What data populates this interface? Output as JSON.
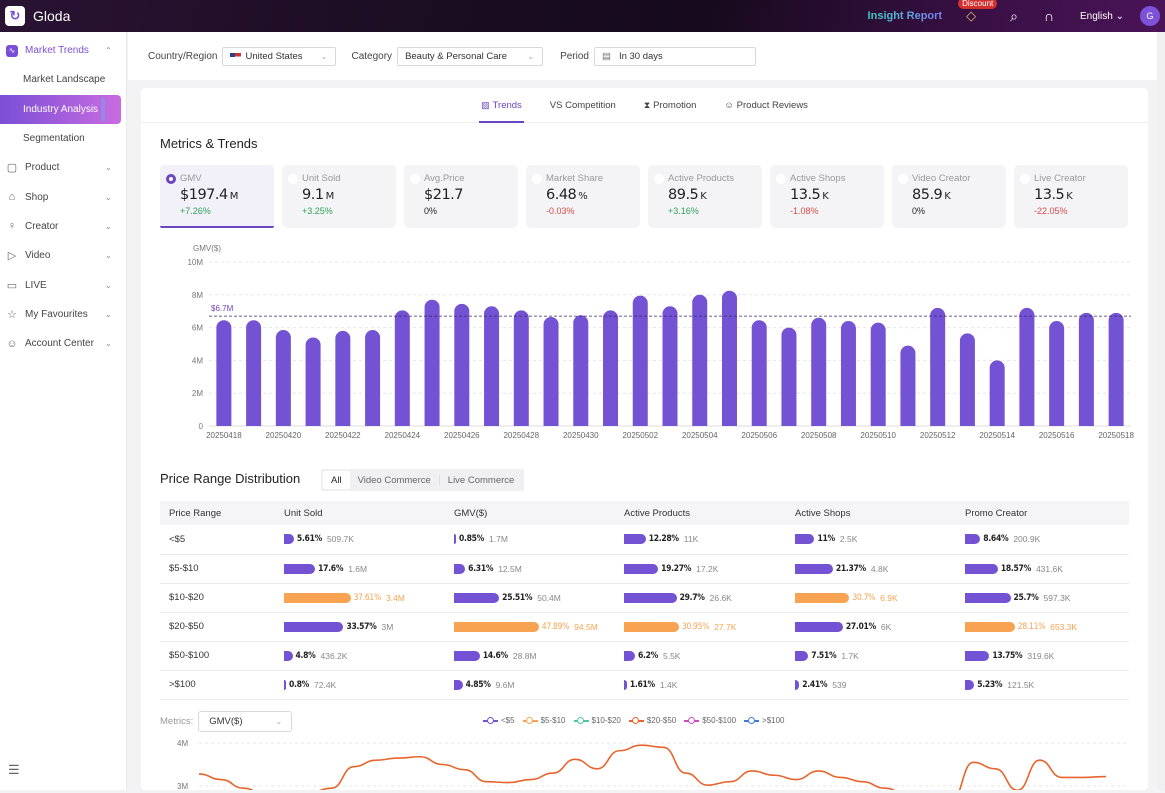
{
  "app": {
    "name": "Gloda",
    "logo_icon": "gloda-logo-icon"
  },
  "topbar": {
    "insight_report": "Insight Report",
    "discount_badge": "Discount",
    "language": "English",
    "avatar_initial": "G"
  },
  "sidebar": {
    "items": [
      {
        "label": "Market Trends",
        "icon": "chart-icon",
        "expanded": true,
        "children": [
          {
            "label": "Market Landscape",
            "active": false
          },
          {
            "label": "Industry Analysis",
            "active": true
          },
          {
            "label": "Segmentation",
            "active": false
          }
        ]
      },
      {
        "label": "Product",
        "icon": "bag-icon"
      },
      {
        "label": "Shop",
        "icon": "shop-icon"
      },
      {
        "label": "Creator",
        "icon": "user-icon"
      },
      {
        "label": "Video",
        "icon": "play-icon"
      },
      {
        "label": "LIVE",
        "icon": "live-icon"
      },
      {
        "label": "My Favourites",
        "icon": "star-icon"
      },
      {
        "label": "Account Center",
        "icon": "smile-icon"
      }
    ]
  },
  "filters": {
    "country_label": "Country/Region",
    "country_value": "United States",
    "category_label": "Category",
    "category_value": "Beauty & Personal Care",
    "period_label": "Period",
    "period_value": "In 30 days"
  },
  "tabs": [
    {
      "label": "Trends",
      "icon": "trend-icon",
      "active": true
    },
    {
      "label": "VS Competition",
      "icon": "",
      "active": false
    },
    {
      "label": "Promotion",
      "icon": "promotion-icon",
      "active": false
    },
    {
      "label": "Product Reviews",
      "icon": "review-icon",
      "active": false
    }
  ],
  "metrics_section": {
    "title": "Metrics & Trends",
    "cards": [
      {
        "label": "GMV",
        "value": "$197.4",
        "unit": "M",
        "change": "+7.26%",
        "trend": "pos",
        "selected": true
      },
      {
        "label": "Unit Sold",
        "value": "9.1",
        "unit": "M",
        "change": "+3.25%",
        "trend": "pos",
        "selected": false
      },
      {
        "label": "Avg.Price",
        "value": "$21.7",
        "unit": "",
        "change": "0%",
        "trend": "zero",
        "selected": false
      },
      {
        "label": "Market Share",
        "value": "6.48",
        "unit": "%",
        "change": "-0.03%",
        "trend": "neg",
        "selected": false
      },
      {
        "label": "Active Products",
        "value": "89.5",
        "unit": "K",
        "change": "+3.16%",
        "trend": "pos",
        "selected": false
      },
      {
        "label": "Active Shops",
        "value": "13.5",
        "unit": "K",
        "change": "-1.08%",
        "trend": "neg",
        "selected": false
      },
      {
        "label": "Video Creator",
        "value": "85.9",
        "unit": "K",
        "change": "0%",
        "trend": "zero",
        "selected": false
      },
      {
        "label": "Live Creator",
        "value": "13.5",
        "unit": "K",
        "change": "-22.05%",
        "trend": "neg",
        "selected": false
      }
    ]
  },
  "chart_data": {
    "type": "bar",
    "title": "",
    "ylabel": "GMV($)",
    "xlabel": "",
    "ylim": [
      0,
      10000000
    ],
    "yticks": [
      "0",
      "2M",
      "4M",
      "6M",
      "8M",
      "10M"
    ],
    "ytick_values": [
      0,
      2000000,
      4000000,
      6000000,
      8000000,
      10000000
    ],
    "grid": true,
    "bar_color": "#7352d4",
    "average_line": {
      "value": 6700000,
      "label": "$6.7M"
    },
    "categories": [
      "20250418",
      "20250419",
      "20250420",
      "20250421",
      "20250422",
      "20250423",
      "20250424",
      "20250425",
      "20250426",
      "20250427",
      "20250428",
      "20250429",
      "20250430",
      "20250501",
      "20250502",
      "20250503",
      "20250504",
      "20250505",
      "20250506",
      "20250507",
      "20250508",
      "20250509",
      "20250510",
      "20250511",
      "20250512",
      "20250513",
      "20250514",
      "20250515",
      "20250516",
      "20250517",
      "20250518"
    ],
    "tick_labels": [
      "20250418",
      "20250420",
      "20250422",
      "20250424",
      "20250426",
      "20250428",
      "20250430",
      "20250502",
      "20250504",
      "20250506",
      "20250508",
      "20250510",
      "20250512",
      "20250514",
      "20250516",
      "20250518"
    ],
    "values": [
      6450000,
      6450000,
      5850000,
      5400000,
      5800000,
      5850000,
      7050000,
      7700000,
      7450000,
      7300000,
      7050000,
      6650000,
      6750000,
      7050000,
      7950000,
      7300000,
      8000000,
      8250000,
      6450000,
      6000000,
      6600000,
      6400000,
      6300000,
      4900000,
      7200000,
      5650000,
      4000000,
      7200000,
      6400000,
      6900000,
      6900000
    ]
  },
  "price_range": {
    "title": "Price Range Distribution",
    "segments": [
      {
        "label": "All",
        "active": true
      },
      {
        "label": "Video Commerce",
        "active": false
      },
      {
        "label": "Live Commerce",
        "active": false
      }
    ],
    "columns": [
      "Price Range",
      "Unit Sold",
      "GMV($)",
      "Active Products",
      "Active Shops",
      "Promo Creator"
    ],
    "rows": [
      {
        "range": "<$5",
        "cells": [
          {
            "pct": "5.61%",
            "val": "509.7K",
            "share": 5.61,
            "top": false
          },
          {
            "pct": "0.85%",
            "val": "1.7M",
            "share": 0.85,
            "top": false
          },
          {
            "pct": "12.28%",
            "val": "11K",
            "share": 12.28,
            "top": false
          },
          {
            "pct": "11%",
            "val": "2.5K",
            "share": 11,
            "top": false
          },
          {
            "pct": "8.64%",
            "val": "200.9K",
            "share": 8.64,
            "top": false
          }
        ]
      },
      {
        "range": "$5-$10",
        "cells": [
          {
            "pct": "17.6%",
            "val": "1.6M",
            "share": 17.6,
            "top": false
          },
          {
            "pct": "6.31%",
            "val": "12.5M",
            "share": 6.31,
            "top": false
          },
          {
            "pct": "19.27%",
            "val": "17.2K",
            "share": 19.27,
            "top": false
          },
          {
            "pct": "21.37%",
            "val": "4.8K",
            "share": 21.37,
            "top": false
          },
          {
            "pct": "18.57%",
            "val": "431.6K",
            "share": 18.57,
            "top": false
          }
        ]
      },
      {
        "range": "$10-$20",
        "cells": [
          {
            "pct": "37.61%",
            "val": "3.4M",
            "share": 37.61,
            "top": true
          },
          {
            "pct": "25.51%",
            "val": "50.4M",
            "share": 25.51,
            "top": false
          },
          {
            "pct": "29.7%",
            "val": "26.6K",
            "share": 29.7,
            "top": false
          },
          {
            "pct": "30.7%",
            "val": "6.9K",
            "share": 30.7,
            "top": true
          },
          {
            "pct": "25.7%",
            "val": "597.3K",
            "share": 25.7,
            "top": false
          }
        ]
      },
      {
        "range": "$20-$50",
        "cells": [
          {
            "pct": "33.57%",
            "val": "3M",
            "share": 33.57,
            "top": false
          },
          {
            "pct": "47.89%",
            "val": "94.5M",
            "share": 47.89,
            "top": true
          },
          {
            "pct": "30.95%",
            "val": "27.7K",
            "share": 30.95,
            "top": true
          },
          {
            "pct": "27.01%",
            "val": "6K",
            "share": 27.01,
            "top": false
          },
          {
            "pct": "28.11%",
            "val": "653.3K",
            "share": 28.11,
            "top": true
          }
        ]
      },
      {
        "range": "$50-$100",
        "cells": [
          {
            "pct": "4.8%",
            "val": "436.2K",
            "share": 4.8,
            "top": false
          },
          {
            "pct": "14.6%",
            "val": "28.8M",
            "share": 14.6,
            "top": false
          },
          {
            "pct": "6.2%",
            "val": "5.5K",
            "share": 6.2,
            "top": false
          },
          {
            "pct": "7.51%",
            "val": "1.7K",
            "share": 7.51,
            "top": false
          },
          {
            "pct": "13.75%",
            "val": "319.6K",
            "share": 13.75,
            "top": false
          }
        ]
      },
      {
        "range": ">$100",
        "cells": [
          {
            "pct": "0.8%",
            "val": "72.4K",
            "share": 0.8,
            "top": false
          },
          {
            "pct": "4.85%",
            "val": "9.6M",
            "share": 4.85,
            "top": false
          },
          {
            "pct": "1.61%",
            "val": "1.4K",
            "share": 1.61,
            "top": false
          },
          {
            "pct": "2.41%",
            "val": "539",
            "share": 2.41,
            "top": false
          },
          {
            "pct": "5.23%",
            "val": "121.5K",
            "share": 5.23,
            "top": false
          }
        ]
      }
    ]
  },
  "price_trend": {
    "metrics_label": "Metrics:",
    "metrics_value": "GMV($)",
    "legend": [
      {
        "label": "<$5",
        "color": "#7352d4"
      },
      {
        "label": "$5-$10",
        "color": "#f7a352"
      },
      {
        "label": "$10-$20",
        "color": "#4cc9a0"
      },
      {
        "label": "$20-$50",
        "color": "#e8642c"
      },
      {
        "label": "$50-$100",
        "color": "#d048c8"
      },
      {
        "label": ">$100",
        "color": "#3f7ae0"
      }
    ],
    "yticks": [
      "4M",
      "3M"
    ],
    "visible_series": {
      "name": "$20-$50",
      "color": "#e8642c",
      "values": [
        3.28,
        3.15,
        2.95,
        2.8,
        2.75,
        2.85,
        2.95,
        3.45,
        3.6,
        3.65,
        3.68,
        3.5,
        3.38,
        3.1,
        3.08,
        3.15,
        3.3,
        3.62,
        3.4,
        3.82,
        3.95,
        3.9,
        3.3,
        3.02,
        3.1,
        3.35,
        3.25,
        3.15,
        3.35,
        3.2,
        3.1,
        2.95,
        2.8,
        2.6,
        2.65,
        3.55,
        3.4,
        2.9,
        3.6,
        3.2,
        3.2,
        3.22
      ]
    }
  }
}
